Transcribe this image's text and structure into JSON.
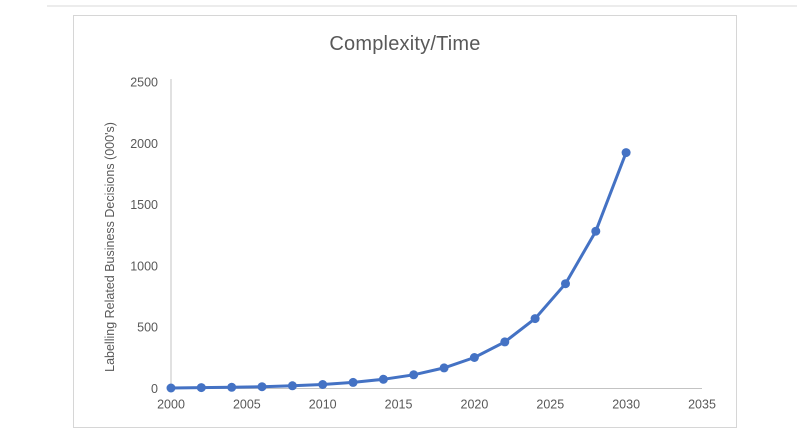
{
  "chart": {
    "title": "Complexity/Time",
    "y_axis_title": "Labelling Related Business Decisions (000's)"
  },
  "chart_data": {
    "type": "line",
    "title": "Complexity/Time",
    "xlabel": "",
    "ylabel": "Labelling Related Business Decisions (000's)",
    "x": [
      2000,
      2002,
      2004,
      2006,
      2008,
      2010,
      2012,
      2014,
      2016,
      2018,
      2020,
      2022,
      2024,
      2026,
      2028,
      2030
    ],
    "values": [
      4,
      7,
      10,
      15,
      22,
      33,
      50,
      75,
      112,
      168,
      253,
      380,
      570,
      855,
      1283,
      1924
    ],
    "series": [
      {
        "name": "Labelling Related Business Decisions (000's)",
        "values": [
          4,
          7,
          10,
          15,
          22,
          33,
          50,
          75,
          112,
          168,
          253,
          380,
          570,
          855,
          1283,
          1924
        ]
      }
    ],
    "x_ticks": [
      2000,
      2005,
      2010,
      2015,
      2020,
      2025,
      2030,
      2035
    ],
    "y_ticks": [
      0,
      500,
      1000,
      1500,
      2000,
      2500
    ],
    "xlim": [
      2000,
      2035
    ],
    "ylim": [
      0,
      2500
    ],
    "grid": false,
    "legend": "none",
    "marker": "circle"
  },
  "colors": {
    "series": "#4472C4",
    "axis_line": "#c3c3c3",
    "tick_text": "#595959",
    "title_text": "#595959",
    "frame_border": "#d6d6d6"
  }
}
